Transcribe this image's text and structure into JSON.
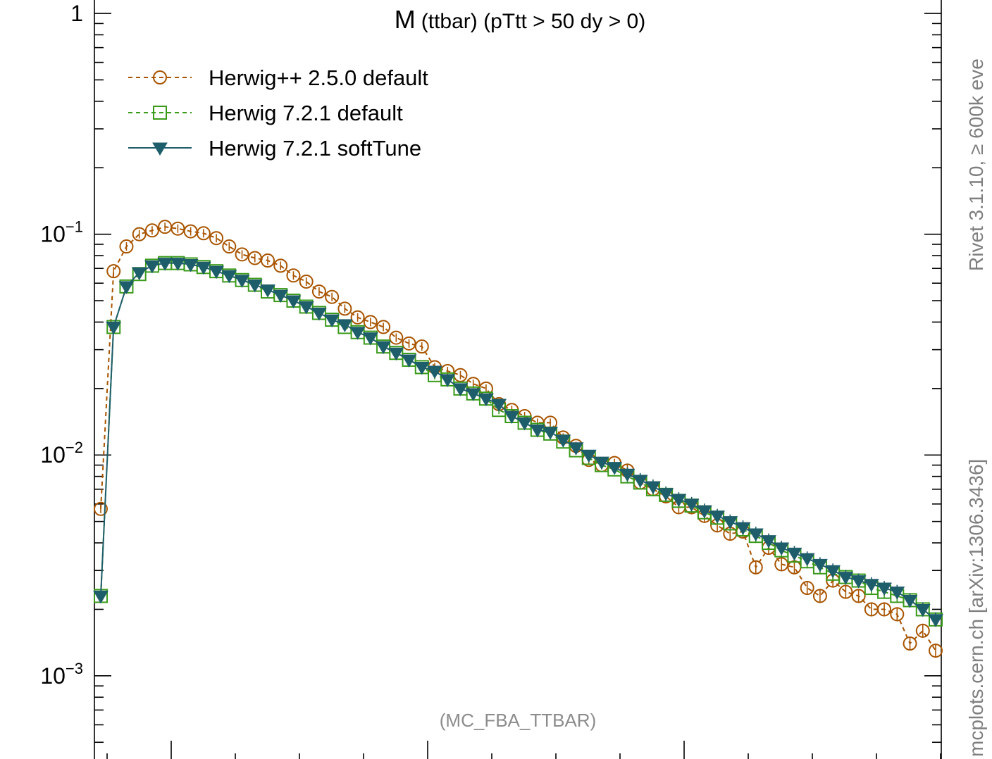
{
  "colors": {
    "herwigpp": "#a85400",
    "herwig721": "#3a9a1a",
    "softtune": "#1e5d6a",
    "axis": "#000000",
    "side_label": "#7f7f7f",
    "analysis_tag": "#8c8c8c"
  },
  "title": {
    "main": "M",
    "sub": "(ttbar) (pTtt > 50 dy > 0)"
  },
  "side_labels": {
    "rivet": "Rivet 3.1.10, ≥ 600k eve",
    "mcplots": "mcplots.cern.ch [arXiv:1306.3436]"
  },
  "analysis_tag": "(MC_FBA_TTBAR)",
  "chart_data": {
    "type": "line",
    "yscale": "log",
    "ylim": [
      0.00042,
      1.15
    ],
    "y_ticks": [
      {
        "base": "1",
        "exp": ""
      },
      {
        "base": "10",
        "exp": "−1"
      },
      {
        "base": "10",
        "exp": "−2"
      },
      {
        "base": "10",
        "exp": "−3"
      }
    ],
    "x_ticklabels_visible": false,
    "legend_position": "top-left",
    "series": [
      {
        "name": "Herwig++ 2.5.0 default",
        "marker": "circle",
        "style": "dashed",
        "color": "#a85400",
        "values": [
          0.0057,
          0.068,
          0.088,
          0.1,
          0.104,
          0.108,
          0.106,
          0.103,
          0.101,
          0.096,
          0.088,
          0.081,
          0.078,
          0.076,
          0.072,
          0.065,
          0.061,
          0.055,
          0.052,
          0.046,
          0.042,
          0.04,
          0.038,
          0.034,
          0.032,
          0.031,
          0.025,
          0.024,
          0.023,
          0.021,
          0.02,
          0.017,
          0.016,
          0.015,
          0.014,
          0.014,
          0.012,
          0.011,
          0.0095,
          0.009,
          0.0092,
          0.0085,
          0.0075,
          0.007,
          0.0065,
          0.0058,
          0.0058,
          0.0053,
          0.0048,
          0.0044,
          0.0045,
          0.0031,
          0.0038,
          0.0032,
          0.0031,
          0.0025,
          0.0023,
          0.0027,
          0.0024,
          0.0023,
          0.002,
          0.002,
          0.0019,
          0.0014,
          0.0016,
          0.0013
        ]
      },
      {
        "name": "Herwig 7.2.1 default",
        "marker": "square",
        "style": "dashed",
        "color": "#3a9a1a",
        "values": [
          0.0023,
          0.038,
          0.058,
          0.066,
          0.072,
          0.074,
          0.074,
          0.073,
          0.071,
          0.068,
          0.065,
          0.062,
          0.059,
          0.055,
          0.053,
          0.05,
          0.047,
          0.044,
          0.041,
          0.038,
          0.036,
          0.034,
          0.031,
          0.029,
          0.027,
          0.025,
          0.023,
          0.022,
          0.02,
          0.019,
          0.018,
          0.016,
          0.015,
          0.014,
          0.013,
          0.0125,
          0.0115,
          0.0105,
          0.0097,
          0.009,
          0.0086,
          0.008,
          0.0075,
          0.007,
          0.0066,
          0.0062,
          0.0059,
          0.0055,
          0.0052,
          0.0049,
          0.0046,
          0.0043,
          0.004,
          0.0037,
          0.0035,
          0.0033,
          0.0031,
          0.0029,
          0.0028,
          0.0027,
          0.0025,
          0.0024,
          0.0023,
          0.0022,
          0.002,
          0.0018
        ]
      },
      {
        "name": "Herwig 7.2.1 softTune",
        "marker": "triangle-down",
        "style": "solid",
        "color": "#1e5d6a",
        "values": [
          0.0023,
          0.038,
          0.058,
          0.067,
          0.072,
          0.074,
          0.074,
          0.073,
          0.071,
          0.068,
          0.065,
          0.062,
          0.059,
          0.056,
          0.053,
          0.05,
          0.047,
          0.044,
          0.041,
          0.039,
          0.036,
          0.034,
          0.031,
          0.029,
          0.027,
          0.025,
          0.024,
          0.022,
          0.02,
          0.019,
          0.018,
          0.017,
          0.015,
          0.014,
          0.013,
          0.0127,
          0.0117,
          0.0108,
          0.01,
          0.0093,
          0.0088,
          0.0082,
          0.0077,
          0.0072,
          0.0067,
          0.0063,
          0.006,
          0.0056,
          0.0053,
          0.005,
          0.0047,
          0.0044,
          0.0041,
          0.0038,
          0.0036,
          0.0034,
          0.0032,
          0.003,
          0.0028,
          0.0027,
          0.0026,
          0.0025,
          0.0024,
          0.0022,
          0.002,
          0.0018
        ]
      }
    ]
  }
}
